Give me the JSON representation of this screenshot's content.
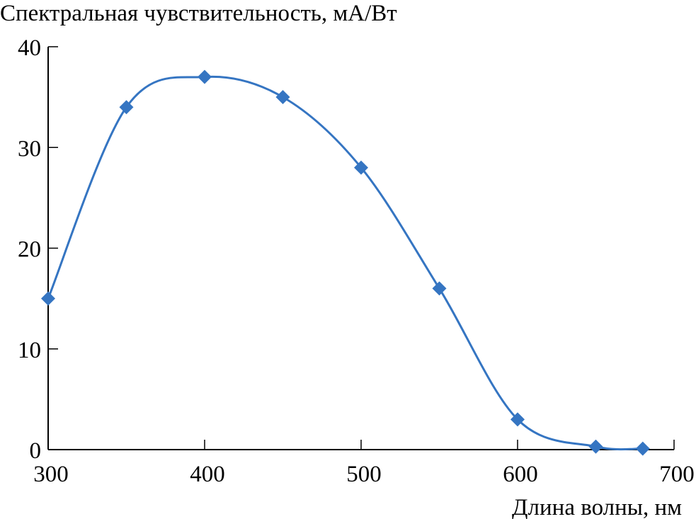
{
  "chart_data": {
    "type": "line",
    "title": "",
    "ylabel": "Спектральная чувствительность, мА/Вт",
    "xlabel": "Длина волны, нм",
    "xlim": [
      300,
      700
    ],
    "ylim": [
      0,
      40
    ],
    "xticks": [
      300,
      400,
      500,
      600,
      700
    ],
    "yticks": [
      0,
      10,
      20,
      30,
      40
    ],
    "grid": false,
    "smooth": true,
    "marker": "diamond",
    "color": "#3575c2",
    "series": [
      {
        "x": [
          300,
          350,
          400,
          450,
          500,
          550,
          600,
          650,
          680
        ],
        "y": [
          15,
          34,
          37,
          35,
          28,
          16,
          3,
          0.3,
          0.1
        ]
      }
    ]
  }
}
